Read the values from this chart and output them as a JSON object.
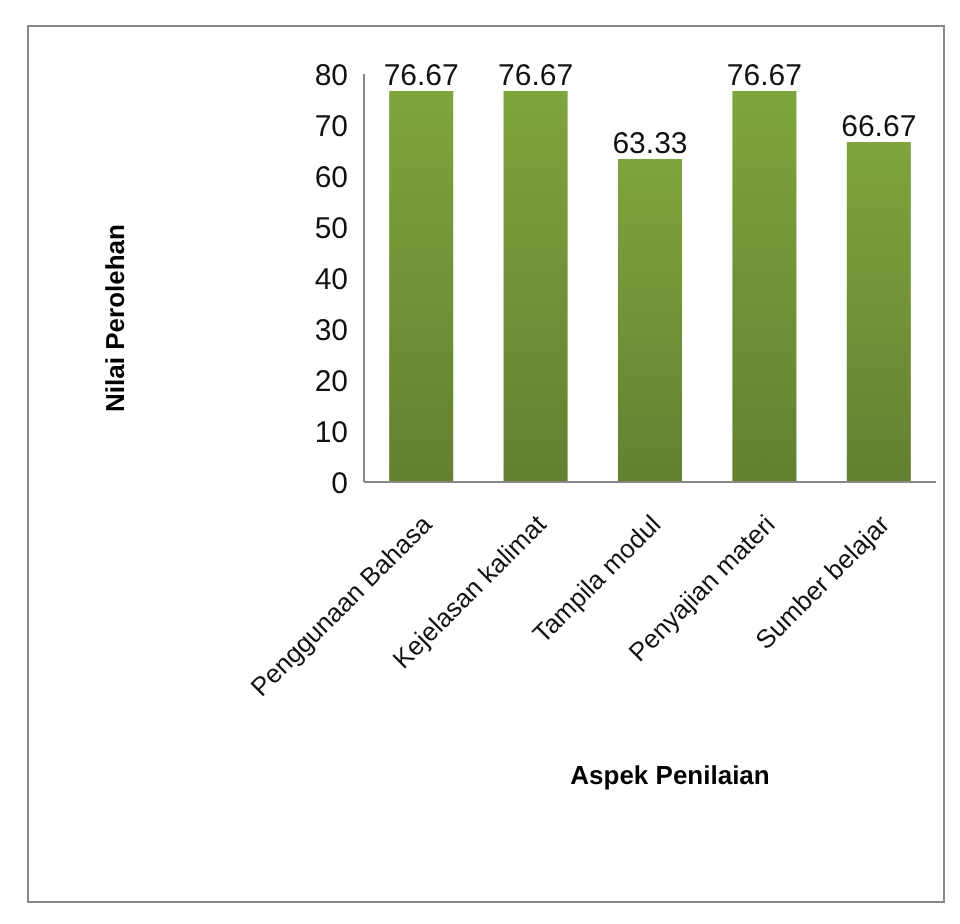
{
  "chart_data": {
    "type": "bar",
    "xlabel": "Aspek Penilaian",
    "ylabel": "Nilai Perolehan",
    "categories": [
      "Penggunaan Bahasa",
      "Kejelasan kalimat",
      "Tampila modul",
      "Penyajian materi",
      "Sumber belajar"
    ],
    "values": [
      76.67,
      76.67,
      63.33,
      76.67,
      66.67
    ],
    "color": "#729437",
    "ylim": [
      0,
      80
    ],
    "yticks": [
      0,
      10,
      20,
      30,
      40,
      50,
      60,
      70,
      80
    ],
    "data_labels": true,
    "grid": false
  }
}
